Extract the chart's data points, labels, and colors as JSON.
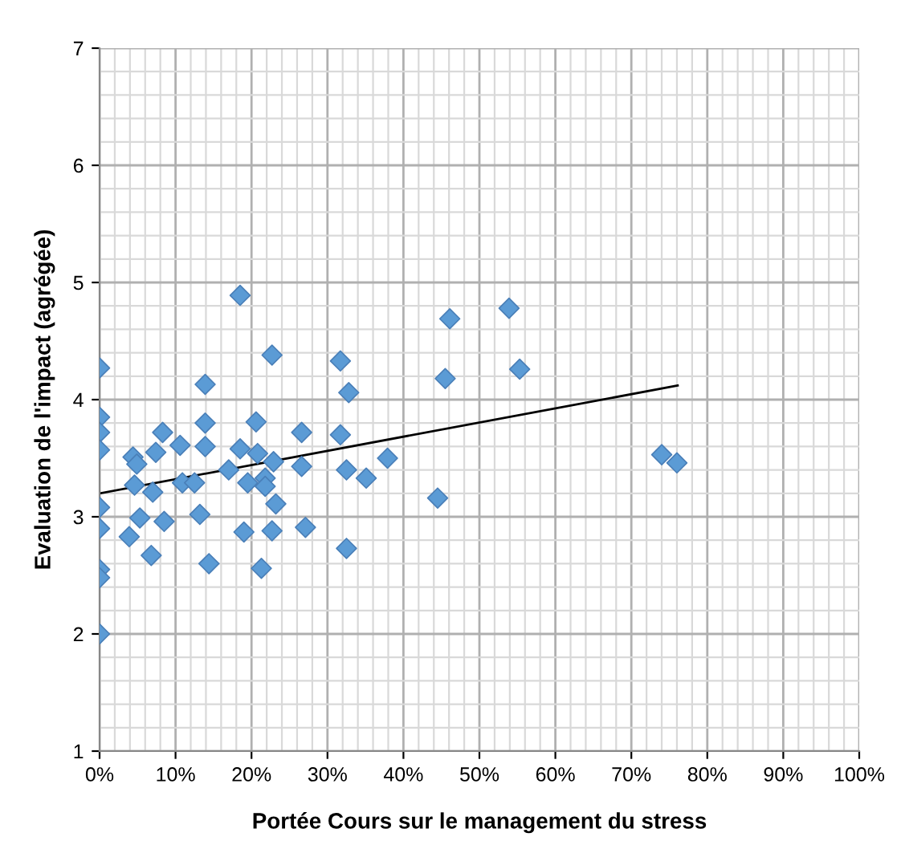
{
  "chart_data": {
    "type": "scatter",
    "xlabel": "Portée Cours sur le management du stress",
    "ylabel": "Evaluation de l'impact (agrégée)",
    "series": [
      {
        "color": "#5b9bd5",
        "marker": "diamond",
        "x": [
          0,
          0,
          0,
          0,
          0,
          0,
          0,
          0,
          0,
          3.9,
          4.4,
          4.9,
          4.6,
          5.3,
          6.8,
          7.0,
          7.4,
          8.3,
          8.5,
          10.6,
          10.9,
          12.5,
          13.2,
          13.9,
          13.9,
          13.9,
          14.4,
          17.0,
          18.5,
          18.5,
          19.0,
          19.5,
          20.6,
          20.8,
          21.3,
          21.8,
          21.8,
          22.7,
          22.9,
          22.7,
          23.2,
          26.6,
          26.6,
          27.1,
          31.7,
          32.8,
          31.7,
          32.5,
          32.5,
          35.1,
          37.9,
          44.5,
          45.5,
          46.1,
          53.9,
          55.3,
          74.0,
          76.0
        ],
        "values": [
          4.27,
          3.85,
          3.72,
          3.57,
          3.08,
          2.9,
          2.55,
          2.48,
          2.0,
          2.83,
          3.51,
          3.45,
          3.27,
          2.99,
          2.67,
          3.21,
          3.55,
          3.72,
          2.96,
          3.61,
          3.29,
          3.29,
          3.02,
          4.13,
          3.8,
          3.6,
          2.6,
          3.4,
          4.89,
          3.58,
          2.87,
          3.29,
          3.81,
          3.54,
          2.56,
          3.33,
          3.26,
          4.38,
          3.47,
          2.88,
          3.11,
          3.72,
          3.43,
          2.91,
          4.33,
          4.06,
          3.7,
          3.4,
          2.73,
          3.33,
          3.5,
          3.16,
          4.18,
          4.69,
          4.78,
          4.26,
          3.53,
          3.46
        ]
      },
      {
        "type": "line",
        "color": "#000000",
        "marker": "none",
        "x": [
          0,
          76.1
        ],
        "values": [
          3.2,
          4.12
        ]
      }
    ],
    "xlim": [
      0,
      100
    ],
    "ylim": [
      1,
      7
    ],
    "xticks": [
      {
        "value": 0,
        "label": "0%"
      },
      {
        "value": 10,
        "label": "10%"
      },
      {
        "value": 20,
        "label": "20%"
      },
      {
        "value": 30,
        "label": "30%"
      },
      {
        "value": 40,
        "label": "40%"
      },
      {
        "value": 50,
        "label": "50%"
      },
      {
        "value": 60,
        "label": "60%"
      },
      {
        "value": 70,
        "label": "70%"
      },
      {
        "value": 80,
        "label": "80%"
      },
      {
        "value": 90,
        "label": "90%"
      },
      {
        "value": 100,
        "label": "100%"
      }
    ],
    "yticks": [
      1,
      2,
      3,
      4,
      5,
      6,
      7
    ],
    "grid": true,
    "legend": false
  }
}
